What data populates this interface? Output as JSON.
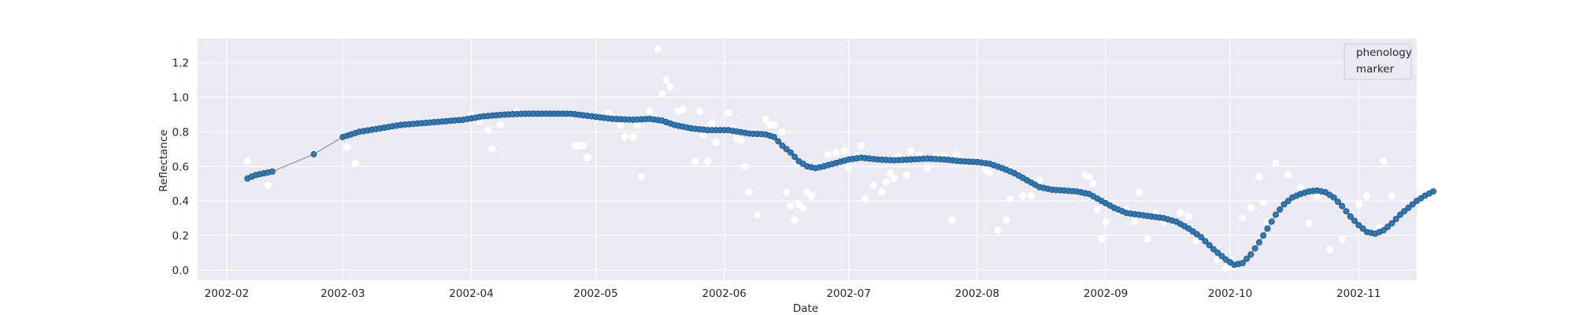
{
  "chart_data": {
    "type": "scatter",
    "title": "",
    "xlabel": "Date",
    "ylabel": "Reflectance",
    "xlim": [
      "2002-01-25",
      "2002-11-15"
    ],
    "ylim": [
      -0.06,
      1.34
    ],
    "grid": true,
    "x_tick_labels": [
      "2002-02",
      "2002-03",
      "2002-04",
      "2002-05",
      "2002-06",
      "2002-07",
      "2002-08",
      "2002-09",
      "2002-10",
      "2002-11"
    ],
    "y_tick_labels": [
      "0.0",
      "0.2",
      "0.4",
      "0.6",
      "0.8",
      "1.0",
      "1.2"
    ],
    "y_ticks": [
      0.0,
      0.2,
      0.4,
      0.6,
      0.8,
      1.0,
      1.2
    ],
    "legend": {
      "placement": "top-right",
      "entries": [
        "phenology",
        "marker"
      ]
    },
    "colors": {
      "background": "#eaeaf2",
      "grid": "#ffffff",
      "smoothed": "#2e7ab8",
      "smoothed_edge": "#1f4f75",
      "raw": "#ffffff",
      "connector": "#7f7f7f"
    },
    "series": [
      {
        "kind": "raw",
        "points": [
          [
            "2002-02-06",
            0.63
          ],
          [
            "2002-02-11",
            0.49
          ],
          [
            "2002-02-22",
            0.67
          ],
          [
            "2002-03-01",
            0.78
          ],
          [
            "2002-03-02",
            0.71
          ],
          [
            "2002-03-04",
            0.62
          ],
          [
            "2002-04-01",
            0.9
          ],
          [
            "2002-04-03",
            0.86
          ],
          [
            "2002-04-05",
            0.81
          ],
          [
            "2002-04-06",
            0.7
          ],
          [
            "2002-04-08",
            0.84
          ],
          [
            "2002-04-12",
            0.92
          ],
          [
            "2002-04-25",
            0.91
          ],
          [
            "2002-04-26",
            0.72
          ],
          [
            "2002-04-27",
            0.72
          ],
          [
            "2002-04-28",
            0.72
          ],
          [
            "2002-04-29",
            0.65
          ],
          [
            "2002-05-04",
            0.91
          ],
          [
            "2002-05-07",
            0.84
          ],
          [
            "2002-05-08",
            0.77
          ],
          [
            "2002-05-10",
            0.77
          ],
          [
            "2002-05-11",
            0.84
          ],
          [
            "2002-05-12",
            0.54
          ],
          [
            "2002-05-14",
            0.92
          ],
          [
            "2002-05-16",
            1.28
          ],
          [
            "2002-05-17",
            1.02
          ],
          [
            "2002-05-18",
            1.1
          ],
          [
            "2002-05-19",
            1.06
          ],
          [
            "2002-05-21",
            0.92
          ],
          [
            "2002-05-22",
            0.93
          ],
          [
            "2002-05-25",
            0.63
          ],
          [
            "2002-05-26",
            0.92
          ],
          [
            "2002-05-27",
            0.78
          ],
          [
            "2002-05-28",
            0.63
          ],
          [
            "2002-05-29",
            0.85
          ],
          [
            "2002-05-30",
            0.74
          ],
          [
            "2002-06-02",
            0.91
          ],
          [
            "2002-06-03",
            0.82
          ],
          [
            "2002-06-04",
            0.76
          ],
          [
            "2002-06-05",
            0.75
          ],
          [
            "2002-06-06",
            0.6
          ],
          [
            "2002-06-07",
            0.45
          ],
          [
            "2002-06-08",
            0.8
          ],
          [
            "2002-06-09",
            0.32
          ],
          [
            "2002-06-10",
            0.78
          ],
          [
            "2002-06-11",
            0.87
          ],
          [
            "2002-06-12",
            0.84
          ],
          [
            "2002-06-13",
            0.84
          ],
          [
            "2002-06-14",
            0.74
          ],
          [
            "2002-06-15",
            0.8
          ],
          [
            "2002-06-16",
            0.45
          ],
          [
            "2002-06-17",
            0.37
          ],
          [
            "2002-06-18",
            0.29
          ],
          [
            "2002-06-19",
            0.38
          ],
          [
            "2002-06-20",
            0.36
          ],
          [
            "2002-06-21",
            0.45
          ],
          [
            "2002-06-22",
            0.43
          ],
          [
            "2002-06-24",
            0.6
          ],
          [
            "2002-06-26",
            0.67
          ],
          [
            "2002-06-28",
            0.68
          ],
          [
            "2002-06-30",
            0.69
          ],
          [
            "2002-07-01",
            0.59
          ],
          [
            "2002-07-03",
            0.66
          ],
          [
            "2002-07-04",
            0.72
          ],
          [
            "2002-07-05",
            0.41
          ],
          [
            "2002-07-07",
            0.49
          ],
          [
            "2002-07-08",
            0.64
          ],
          [
            "2002-07-09",
            0.45
          ],
          [
            "2002-07-10",
            0.51
          ],
          [
            "2002-07-11",
            0.56
          ],
          [
            "2002-07-12",
            0.53
          ],
          [
            "2002-07-13",
            0.66
          ],
          [
            "2002-07-15",
            0.55
          ],
          [
            "2002-07-16",
            0.69
          ],
          [
            "2002-07-18",
            0.67
          ],
          [
            "2002-07-20",
            0.59
          ],
          [
            "2002-07-22",
            0.66
          ],
          [
            "2002-07-24",
            0.67
          ],
          [
            "2002-07-26",
            0.29
          ],
          [
            "2002-07-27",
            0.67
          ],
          [
            "2002-07-29",
            0.62
          ],
          [
            "2002-08-03",
            0.58
          ],
          [
            "2002-08-04",
            0.56
          ],
          [
            "2002-08-06",
            0.23
          ],
          [
            "2002-08-08",
            0.29
          ],
          [
            "2002-08-09",
            0.41
          ],
          [
            "2002-08-12",
            0.43
          ],
          [
            "2002-08-14",
            0.43
          ],
          [
            "2002-08-16",
            0.52
          ],
          [
            "2002-08-27",
            0.55
          ],
          [
            "2002-08-28",
            0.54
          ],
          [
            "2002-08-29",
            0.5
          ],
          [
            "2002-08-30",
            0.35
          ],
          [
            "2002-08-31",
            0.18
          ],
          [
            "2002-09-01",
            0.28
          ],
          [
            "2002-09-04",
            0.34
          ],
          [
            "2002-09-06",
            0.35
          ],
          [
            "2002-09-08",
            0.28
          ],
          [
            "2002-09-09",
            0.45
          ],
          [
            "2002-09-11",
            0.18
          ],
          [
            "2002-09-13",
            0.33
          ],
          [
            "2002-09-15",
            0.28
          ],
          [
            "2002-09-17",
            0.29
          ],
          [
            "2002-09-19",
            0.33
          ],
          [
            "2002-09-21",
            0.31
          ],
          [
            "2002-09-23",
            0.17
          ],
          [
            "2002-09-28",
            0.06
          ],
          [
            "2002-09-30",
            0.01
          ],
          [
            "2002-10-01",
            0.06
          ],
          [
            "2002-10-02",
            0.02
          ],
          [
            "2002-10-04",
            0.3
          ],
          [
            "2002-10-06",
            0.36
          ],
          [
            "2002-10-08",
            0.54
          ],
          [
            "2002-10-09",
            0.39
          ],
          [
            "2002-10-10",
            0.28
          ],
          [
            "2002-10-12",
            0.62
          ],
          [
            "2002-10-15",
            0.55
          ],
          [
            "2002-10-18",
            0.48
          ],
          [
            "2002-10-20",
            0.27
          ],
          [
            "2002-10-22",
            0.43
          ],
          [
            "2002-10-25",
            0.12
          ],
          [
            "2002-10-28",
            0.18
          ],
          [
            "2002-11-01",
            0.38
          ],
          [
            "2002-11-03",
            0.43
          ],
          [
            "2002-11-06",
            0.25
          ],
          [
            "2002-11-07",
            0.63
          ],
          [
            "2002-11-09",
            0.43
          ]
        ]
      },
      {
        "kind": "smoothed",
        "points": [
          [
            "2002-02-06",
            0.53
          ],
          [
            "2002-02-08",
            0.55
          ],
          [
            "2002-02-10",
            0.56
          ],
          [
            "2002-02-12",
            0.57
          ],
          [
            "2002-02-22",
            0.67
          ],
          [
            "2002-03-01",
            0.77
          ],
          [
            "2002-03-05",
            0.8
          ],
          [
            "2002-03-10",
            0.82
          ],
          [
            "2002-03-15",
            0.84
          ],
          [
            "2002-03-20",
            0.85
          ],
          [
            "2002-03-25",
            0.86
          ],
          [
            "2002-03-30",
            0.87
          ],
          [
            "2002-04-04",
            0.89
          ],
          [
            "2002-04-09",
            0.9
          ],
          [
            "2002-04-14",
            0.905
          ],
          [
            "2002-04-20",
            0.905
          ],
          [
            "2002-04-25",
            0.905
          ],
          [
            "2002-04-30",
            0.89
          ],
          [
            "2002-05-05",
            0.875
          ],
          [
            "2002-05-10",
            0.87
          ],
          [
            "2002-05-14",
            0.875
          ],
          [
            "2002-05-17",
            0.865
          ],
          [
            "2002-05-20",
            0.84
          ],
          [
            "2002-05-24",
            0.82
          ],
          [
            "2002-05-28",
            0.81
          ],
          [
            "2002-06-02",
            0.81
          ],
          [
            "2002-06-07",
            0.79
          ],
          [
            "2002-06-11",
            0.785
          ],
          [
            "2002-06-13",
            0.77
          ],
          [
            "2002-06-15",
            0.72
          ],
          [
            "2002-06-17",
            0.68
          ],
          [
            "2002-06-19",
            0.63
          ],
          [
            "2002-06-21",
            0.6
          ],
          [
            "2002-06-23",
            0.59
          ],
          [
            "2002-06-25",
            0.6
          ],
          [
            "2002-06-28",
            0.62
          ],
          [
            "2002-07-01",
            0.64
          ],
          [
            "2002-07-04",
            0.65
          ],
          [
            "2002-07-08",
            0.64
          ],
          [
            "2002-07-12",
            0.635
          ],
          [
            "2002-07-16",
            0.64
          ],
          [
            "2002-07-20",
            0.645
          ],
          [
            "2002-07-24",
            0.64
          ],
          [
            "2002-07-28",
            0.63
          ],
          [
            "2002-08-01",
            0.625
          ],
          [
            "2002-08-04",
            0.615
          ],
          [
            "2002-08-07",
            0.59
          ],
          [
            "2002-08-10",
            0.56
          ],
          [
            "2002-08-13",
            0.52
          ],
          [
            "2002-08-16",
            0.48
          ],
          [
            "2002-08-19",
            0.465
          ],
          [
            "2002-08-22",
            0.46
          ],
          [
            "2002-08-25",
            0.455
          ],
          [
            "2002-08-28",
            0.44
          ],
          [
            "2002-08-31",
            0.4
          ],
          [
            "2002-09-03",
            0.36
          ],
          [
            "2002-09-06",
            0.33
          ],
          [
            "2002-09-09",
            0.32
          ],
          [
            "2002-09-12",
            0.31
          ],
          [
            "2002-09-15",
            0.3
          ],
          [
            "2002-09-18",
            0.28
          ],
          [
            "2002-09-21",
            0.24
          ],
          [
            "2002-09-24",
            0.19
          ],
          [
            "2002-09-27",
            0.12
          ],
          [
            "2002-09-30",
            0.06
          ],
          [
            "2002-10-02",
            0.03
          ],
          [
            "2002-10-04",
            0.04
          ],
          [
            "2002-10-06",
            0.09
          ],
          [
            "2002-10-08",
            0.16
          ],
          [
            "2002-10-10",
            0.24
          ],
          [
            "2002-10-12",
            0.32
          ],
          [
            "2002-10-14",
            0.38
          ],
          [
            "2002-10-16",
            0.42
          ],
          [
            "2002-10-18",
            0.44
          ],
          [
            "2002-10-20",
            0.455
          ],
          [
            "2002-10-22",
            0.46
          ],
          [
            "2002-10-24",
            0.45
          ],
          [
            "2002-10-26",
            0.42
          ],
          [
            "2002-10-28",
            0.37
          ],
          [
            "2002-10-30",
            0.31
          ],
          [
            "2002-11-01",
            0.26
          ],
          [
            "2002-11-03",
            0.22
          ],
          [
            "2002-11-05",
            0.21
          ],
          [
            "2002-11-07",
            0.23
          ],
          [
            "2002-11-09",
            0.27
          ],
          [
            "2002-11-11",
            0.32
          ],
          [
            "2002-11-13",
            0.36
          ],
          [
            "2002-11-15",
            0.4
          ],
          [
            "2002-11-17",
            0.43
          ],
          [
            "2002-11-19",
            0.455
          ]
        ]
      }
    ]
  }
}
